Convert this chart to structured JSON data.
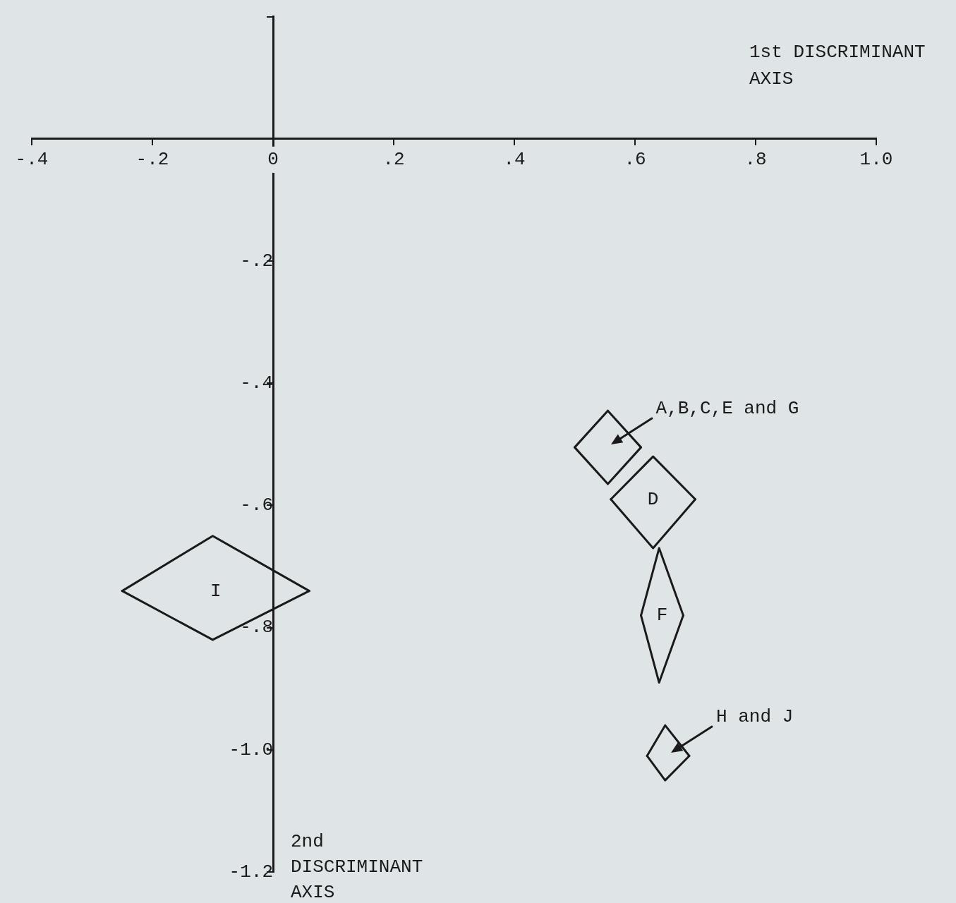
{
  "chart_data": {
    "type": "line",
    "xlabel": "1st DISCRIMINANT AXIS",
    "ylabel": "2nd DISCRIMINANT AXIS",
    "xlim": [
      -0.4,
      1.0
    ],
    "xticks": [
      {
        "value": -0.4,
        "label": "-.4"
      },
      {
        "value": -0.2,
        "label": "-.2"
      },
      0,
      {
        "value": 0.2,
        "label": ".2"
      },
      {
        "value": 0.4,
        "label": ".4"
      },
      {
        "value": 0.6,
        "label": ".6"
      },
      {
        "value": 0.8,
        "label": ".8"
      },
      {
        "value": 1,
        "label": "1.0"
      }
    ],
    "ylim": [
      -1.2,
      0.2
    ],
    "yticks": [
      {
        "value": 0.2,
        "label": null
      },
      {
        "value": -0.2,
        "label": "-.2"
      },
      {
        "value": -0.4,
        "label": "-.4"
      },
      {
        "value": -0.6,
        "label": "-.6"
      },
      {
        "value": -0.8,
        "label": "-.8"
      },
      {
        "value": -1,
        "label": "-1.0"
      },
      {
        "value": -1.2,
        "label": "-1.2"
      }
    ],
    "marker": "none",
    "line_style": "solid",
    "series": [
      {
        "name": "A,B,C,E and G",
        "color": "#1a1a1a",
        "x": [
          0.5,
          0.555,
          0.61
        ],
        "values": [
          -0.505,
          -0.445,
          -0.505
        ]
      },
      {
        "color": "#1a1a1a",
        "x": [
          0.5,
          0.555,
          0.61
        ],
        "values": [
          -0.505,
          -0.565,
          -0.505
        ]
      },
      {
        "name": "D",
        "color": "#1a1a1a",
        "x": [
          0.56,
          0.63,
          0.7
        ],
        "values": [
          -0.59,
          -0.52,
          -0.59
        ]
      },
      {
        "color": "#1a1a1a",
        "x": [
          0.56,
          0.63,
          0.7
        ],
        "values": [
          -0.59,
          -0.67,
          -0.59
        ]
      },
      {
        "name": "F",
        "color": "#1a1a1a",
        "x": [
          0.61,
          0.64,
          0.68
        ],
        "values": [
          -0.78,
          -0.67,
          -0.78
        ]
      },
      {
        "color": "#1a1a1a",
        "x": [
          0.61,
          0.64,
          0.68
        ],
        "values": [
          -0.78,
          -0.89,
          -0.78
        ]
      },
      {
        "name": "H and J",
        "color": "#1a1a1a",
        "x": [
          0.62,
          0.65,
          0.69
        ],
        "values": [
          -1.01,
          -0.96,
          -1.01
        ]
      },
      {
        "color": "#1a1a1a",
        "x": [
          0.62,
          0.65,
          0.69
        ],
        "values": [
          -1.01,
          -1.05,
          -1.01
        ]
      },
      {
        "name": "I",
        "color": "#1a1a1a",
        "x": [
          -0.25,
          -0.1,
          0.06
        ],
        "values": [
          -0.74,
          -0.65,
          -0.74
        ]
      },
      {
        "color": "#1a1a1a",
        "x": [
          -0.25,
          -0.1,
          0.06
        ],
        "values": [
          -0.74,
          -0.82,
          -0.74
        ]
      }
    ]
  }
}
